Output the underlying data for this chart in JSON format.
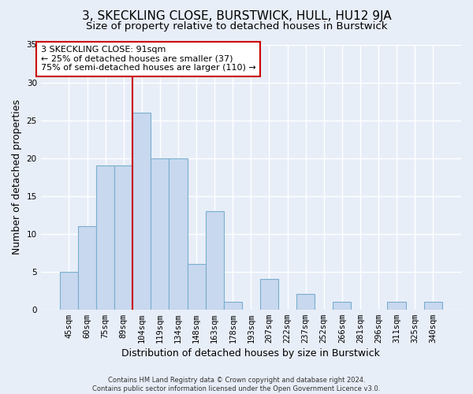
{
  "title": "3, SKECKLING CLOSE, BURSTWICK, HULL, HU12 9JA",
  "subtitle": "Size of property relative to detached houses in Burstwick",
  "xlabel": "Distribution of detached houses by size in Burstwick",
  "ylabel": "Number of detached properties",
  "bar_labels": [
    "45sqm",
    "60sqm",
    "75sqm",
    "89sqm",
    "104sqm",
    "119sqm",
    "134sqm",
    "148sqm",
    "163sqm",
    "178sqm",
    "193sqm",
    "207sqm",
    "222sqm",
    "237sqm",
    "252sqm",
    "266sqm",
    "281sqm",
    "296sqm",
    "311sqm",
    "325sqm",
    "340sqm"
  ],
  "bar_values": [
    5,
    11,
    19,
    19,
    26,
    20,
    20,
    6,
    13,
    1,
    0,
    4,
    0,
    2,
    0,
    1,
    0,
    0,
    1,
    0,
    1
  ],
  "bar_color": "#c8d8ee",
  "bar_edge_color": "#7aaed0",
  "vline_x": 3.5,
  "vline_color": "#cc0000",
  "ylim": [
    0,
    35
  ],
  "yticks": [
    0,
    5,
    10,
    15,
    20,
    25,
    30,
    35
  ],
  "annotation_text": "3 SKECKLING CLOSE: 91sqm\n← 25% of detached houses are smaller (37)\n75% of semi-detached houses are larger (110) →",
  "annotation_box_color": "#ffffff",
  "annotation_box_edge": "#cc0000",
  "footer": "Contains HM Land Registry data © Crown copyright and database right 2024.\nContains public sector information licensed under the Open Government Licence v3.0.",
  "bg_color": "#e8eef8",
  "grid_color": "#ffffff",
  "title_fontsize": 11,
  "subtitle_fontsize": 9.5,
  "ylabel_fontsize": 9,
  "xlabel_fontsize": 9,
  "tick_fontsize": 7.5,
  "annotation_fontsize": 8,
  "footer_fontsize": 6
}
